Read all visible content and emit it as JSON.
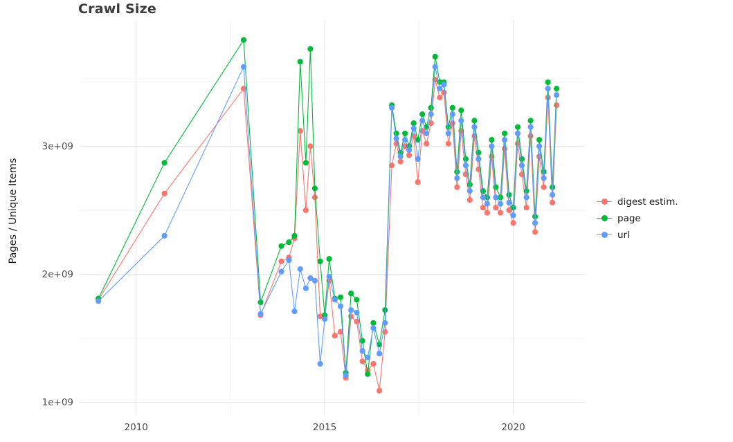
{
  "chart_data": {
    "type": "line",
    "markers": true,
    "title": "Crawl Size",
    "xlabel": "",
    "ylabel": "Pages / Unique Items",
    "xlim": [
      2008.5,
      2021.9
    ],
    "ylim": [
      900000000.0,
      3980000000.0
    ],
    "grid": true,
    "legend_position": "right",
    "x_ticks": [
      {
        "v": 2010,
        "label": "2010"
      },
      {
        "v": 2015,
        "label": "2015"
      },
      {
        "v": 2020,
        "label": "2020"
      }
    ],
    "y_ticks": [
      {
        "v": 1000000000.0,
        "label": "1e+09"
      },
      {
        "v": 2000000000.0,
        "label": "2e+09"
      },
      {
        "v": 3000000000.0,
        "label": "3e+09"
      }
    ],
    "x_minor": [
      2012.5,
      2017.5
    ],
    "y_minor": [
      1500000000.0,
      2500000000.0,
      3500000000.0
    ],
    "x": [
      2009.0,
      2010.75,
      2012.85,
      2013.3,
      2013.85,
      2014.05,
      2014.2,
      2014.35,
      2014.5,
      2014.62,
      2014.74,
      2014.88,
      2015.0,
      2015.12,
      2015.27,
      2015.42,
      2015.56,
      2015.7,
      2015.85,
      2016.0,
      2016.14,
      2016.29,
      2016.45,
      2016.6,
      2016.78,
      2016.9,
      2017.01,
      2017.13,
      2017.24,
      2017.36,
      2017.47,
      2017.59,
      2017.7,
      2017.82,
      2017.93,
      2018.05,
      2018.16,
      2018.28,
      2018.39,
      2018.51,
      2018.62,
      2018.74,
      2018.85,
      2018.97,
      2019.08,
      2019.2,
      2019.31,
      2019.43,
      2019.54,
      2019.66,
      2019.77,
      2019.89,
      2020.0,
      2020.12,
      2020.23,
      2020.35,
      2020.46,
      2020.58,
      2020.69,
      2020.81,
      2020.92,
      2021.04,
      2021.15
    ],
    "series": [
      {
        "name": "digest estim.",
        "color": "#F8766D",
        "values": [
          1800000000.0,
          2630000000.0,
          3450000000.0,
          1680000000.0,
          2100000000.0,
          2130000000.0,
          2280000000.0,
          3120000000.0,
          2500000000.0,
          3000000000.0,
          2600000000.0,
          1670000000.0,
          1660000000.0,
          1950000000.0,
          1520000000.0,
          1550000000.0,
          1190000000.0,
          1670000000.0,
          1630000000.0,
          1320000000.0,
          1250000000.0,
          1300000000.0,
          1090000000.0,
          1550000000.0,
          2850000000.0,
          3020000000.0,
          2880000000.0,
          3000000000.0,
          2930000000.0,
          3080000000.0,
          2720000000.0,
          3120000000.0,
          3020000000.0,
          3180000000.0,
          3520000000.0,
          3380000000.0,
          3420000000.0,
          3020000000.0,
          3180000000.0,
          2680000000.0,
          3120000000.0,
          2780000000.0,
          2580000000.0,
          3080000000.0,
          2820000000.0,
          2520000000.0,
          2480000000.0,
          2920000000.0,
          2520000000.0,
          2480000000.0,
          2980000000.0,
          2500000000.0,
          2400000000.0,
          3020000000.0,
          2780000000.0,
          2520000000.0,
          3080000000.0,
          2330000000.0,
          2920000000.0,
          2680000000.0,
          3380000000.0,
          2560000000.0,
          3320000000.0
        ]
      },
      {
        "name": "page",
        "color": "#00BA38",
        "values": [
          1810000000.0,
          2870000000.0,
          3830000000.0,
          1780000000.0,
          2220000000.0,
          2250000000.0,
          2300000000.0,
          3660000000.0,
          2870000000.0,
          3760000000.0,
          2670000000.0,
          2100000000.0,
          1680000000.0,
          2120000000.0,
          1810000000.0,
          1820000000.0,
          1230000000.0,
          1850000000.0,
          1800000000.0,
          1480000000.0,
          1220000000.0,
          1620000000.0,
          1450000000.0,
          1720000000.0,
          3320000000.0,
          3100000000.0,
          2950000000.0,
          3100000000.0,
          3000000000.0,
          3180000000.0,
          3050000000.0,
          3250000000.0,
          3150000000.0,
          3300000000.0,
          3700000000.0,
          3500000000.0,
          3500000000.0,
          3150000000.0,
          3300000000.0,
          2800000000.0,
          3280000000.0,
          2900000000.0,
          2700000000.0,
          3200000000.0,
          2950000000.0,
          2650000000.0,
          2600000000.0,
          3050000000.0,
          2680000000.0,
          2600000000.0,
          3100000000.0,
          2620000000.0,
          2520000000.0,
          3150000000.0,
          2900000000.0,
          2650000000.0,
          3200000000.0,
          2450000000.0,
          3050000000.0,
          2800000000.0,
          3500000000.0,
          2680000000.0,
          3450000000.0
        ]
      },
      {
        "name": "url",
        "color": "#619CFF",
        "values": [
          1790000000.0,
          2300000000.0,
          3620000000.0,
          1690000000.0,
          2020000000.0,
          2110000000.0,
          1710000000.0,
          2040000000.0,
          1890000000.0,
          1970000000.0,
          1950000000.0,
          1300000000.0,
          1650000000.0,
          1980000000.0,
          1800000000.0,
          1750000000.0,
          1210000000.0,
          1720000000.0,
          1700000000.0,
          1400000000.0,
          1350000000.0,
          1580000000.0,
          1380000000.0,
          1620000000.0,
          3300000000.0,
          3060000000.0,
          2920000000.0,
          3050000000.0,
          2970000000.0,
          3140000000.0,
          2900000000.0,
          3200000000.0,
          3100000000.0,
          3250000000.0,
          3620000000.0,
          3450000000.0,
          3480000000.0,
          3100000000.0,
          3250000000.0,
          2750000000.0,
          3200000000.0,
          2850000000.0,
          2650000000.0,
          3150000000.0,
          2900000000.0,
          2600000000.0,
          2550000000.0,
          3000000000.0,
          2600000000.0,
          2550000000.0,
          3050000000.0,
          2560000000.0,
          2460000000.0,
          3100000000.0,
          2850000000.0,
          2600000000.0,
          3150000000.0,
          2400000000.0,
          3000000000.0,
          2750000000.0,
          3450000000.0,
          2620000000.0,
          3400000000.0
        ]
      }
    ]
  }
}
